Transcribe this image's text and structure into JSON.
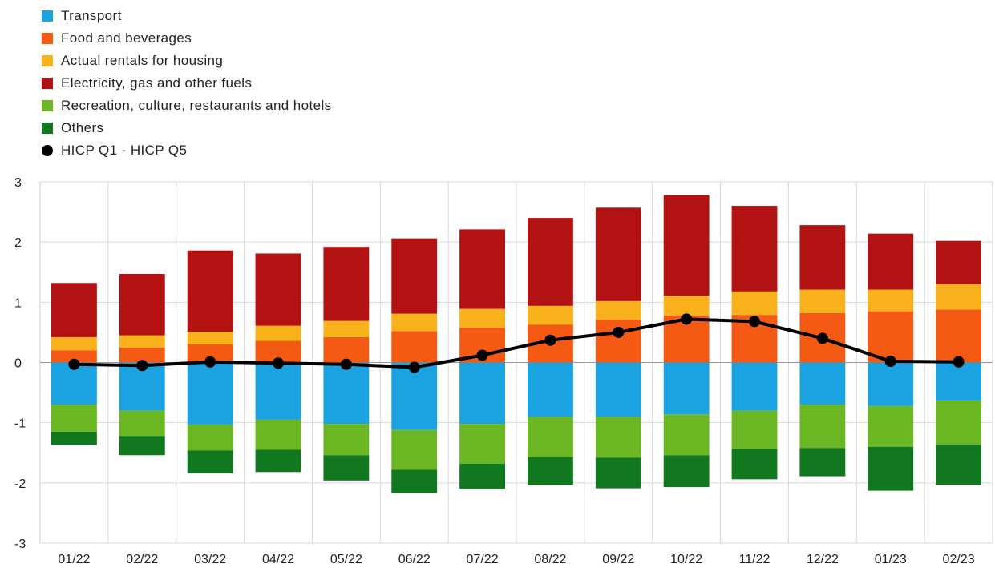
{
  "chart_data": {
    "type": "bar",
    "title": "",
    "xlabel": "",
    "ylabel": "",
    "ylim": [
      -3,
      3
    ],
    "yticks": [
      3,
      2,
      1,
      0,
      -1,
      -2,
      -3
    ],
    "grid": true,
    "legend_position": "top-left",
    "categories": [
      "01/22",
      "02/22",
      "03/22",
      "04/22",
      "05/22",
      "06/22",
      "07/22",
      "08/22",
      "09/22",
      "10/22",
      "11/22",
      "12/22",
      "01/23",
      "02/23"
    ],
    "series": [
      {
        "name": "Transport",
        "color": "#1aa3e0",
        "values": [
          -0.7,
          -0.8,
          -1.03,
          -0.95,
          -1.02,
          -1.12,
          -1.02,
          -0.9,
          -0.9,
          -0.86,
          -0.8,
          -0.7,
          -0.72,
          -0.63
        ]
      },
      {
        "name": "Food and beverages",
        "color": "#f55a14",
        "values": [
          0.2,
          0.25,
          0.3,
          0.36,
          0.42,
          0.52,
          0.58,
          0.63,
          0.71,
          0.78,
          0.79,
          0.82,
          0.85,
          0.88
        ]
      },
      {
        "name": "Actual rentals for housing",
        "color": "#f9b21c",
        "values": [
          0.22,
          0.2,
          0.21,
          0.25,
          0.27,
          0.29,
          0.31,
          0.31,
          0.31,
          0.33,
          0.39,
          0.39,
          0.36,
          0.42
        ]
      },
      {
        "name": "Electricity, gas and other fuels",
        "color": "#b31212",
        "values": [
          0.9,
          1.02,
          1.35,
          1.2,
          1.23,
          1.25,
          1.32,
          1.46,
          1.55,
          1.67,
          1.42,
          1.07,
          0.93,
          0.72
        ]
      },
      {
        "name": "Recreation, culture, restaurants and hotels",
        "color": "#6ab623",
        "values": [
          -0.45,
          -0.42,
          -0.43,
          -0.5,
          -0.52,
          -0.66,
          -0.66,
          -0.67,
          -0.68,
          -0.68,
          -0.63,
          -0.72,
          -0.68,
          -0.73
        ]
      },
      {
        "name": "Others",
        "color": "#11781f",
        "values": [
          -0.22,
          -0.32,
          -0.38,
          -0.37,
          -0.42,
          -0.39,
          -0.42,
          -0.47,
          -0.51,
          -0.53,
          -0.51,
          -0.47,
          -0.73,
          -0.67
        ]
      }
    ],
    "line": {
      "name": "HICP Q1 - HICP Q5",
      "color": "#000000",
      "values": [
        -0.03,
        -0.05,
        0.01,
        -0.01,
        -0.03,
        -0.08,
        0.12,
        0.37,
        0.5,
        0.72,
        0.68,
        0.4,
        0.02,
        0.01
      ]
    }
  }
}
